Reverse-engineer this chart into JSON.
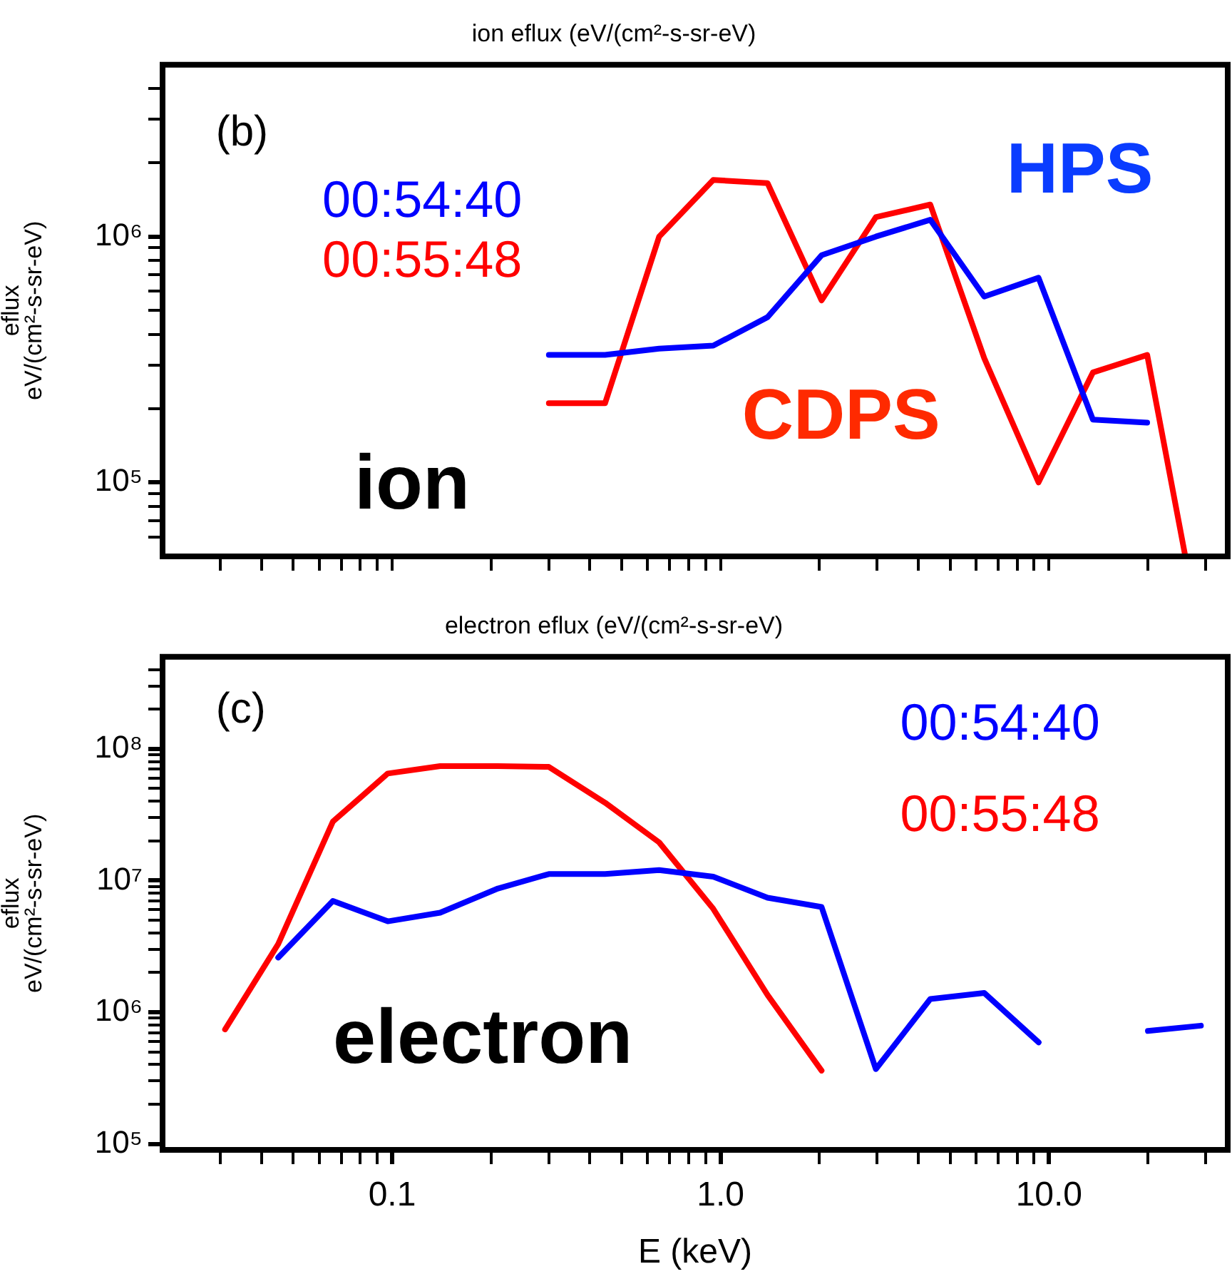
{
  "chart_data": [
    {
      "type": "line",
      "title": "ion eflux (eV/(cm²-s-sr-eV)",
      "ylabel": "eflux\neV/(cm²-s-sr-eV)",
      "x": [
        0.3,
        0.445,
        0.65,
        0.95,
        1.39,
        2.03,
        2.97,
        4.35,
        6.35,
        9.29,
        13.6,
        19.9,
        26
      ],
      "series": [
        {
          "name": "00:54:40",
          "color": "#0000ff",
          "values": [
            330000,
            330000,
            350000,
            360000,
            470000,
            840000,
            1000000,
            1170000,
            570000,
            680000,
            180000,
            175000,
            null
          ]
        },
        {
          "name": "00:55:48",
          "color": "#ff0000",
          "values": [
            210000,
            210000,
            1000000,
            1700000,
            1650000,
            550000,
            1200000,
            1350000,
            320000,
            100000,
            280000,
            330000,
            50000
          ]
        }
      ],
      "xlim": [
        0.02,
        35
      ],
      "ylim": [
        50000,
        5000000
      ],
      "xticks": [
        {
          "value": 0.03,
          "label": null
        },
        {
          "value": 0.04,
          "label": null
        },
        {
          "value": 0.05,
          "label": null
        },
        {
          "value": 0.06,
          "label": null
        },
        {
          "value": 0.07,
          "label": null
        },
        {
          "value": 0.08,
          "label": null
        },
        {
          "value": 0.09,
          "label": null
        },
        {
          "value": 0.1,
          "label": null
        },
        {
          "value": 0.2,
          "label": null
        },
        {
          "value": 0.3,
          "label": null
        },
        {
          "value": 0.4,
          "label": null
        },
        {
          "value": 0.5,
          "label": null
        },
        {
          "value": 0.6,
          "label": null
        },
        {
          "value": 0.7,
          "label": null
        },
        {
          "value": 0.8,
          "label": null
        },
        {
          "value": 0.9,
          "label": null
        },
        {
          "value": 1,
          "label": null
        },
        {
          "value": 2,
          "label": null
        },
        {
          "value": 3,
          "label": null
        },
        {
          "value": 4,
          "label": null
        },
        {
          "value": 5,
          "label": null
        },
        {
          "value": 6,
          "label": null
        },
        {
          "value": 7,
          "label": null
        },
        {
          "value": 8,
          "label": null
        },
        {
          "value": 9,
          "label": null
        },
        {
          "value": 10,
          "label": null
        },
        {
          "value": 20,
          "label": null
        },
        {
          "value": 30,
          "label": null
        }
      ],
      "yticks": [
        {
          "value": 60000,
          "label": null
        },
        {
          "value": 70000,
          "label": null
        },
        {
          "value": 80000,
          "label": null
        },
        {
          "value": 90000,
          "label": null
        },
        {
          "value": 100000,
          "label": "10⁵"
        },
        {
          "value": 200000,
          "label": null
        },
        {
          "value": 300000,
          "label": null
        },
        {
          "value": 400000,
          "label": null
        },
        {
          "value": 500000,
          "label": null
        },
        {
          "value": 600000,
          "label": null
        },
        {
          "value": 700000,
          "label": null
        },
        {
          "value": 800000,
          "label": null
        },
        {
          "value": 900000,
          "label": null
        },
        {
          "value": 1000000,
          "label": "10⁶"
        },
        {
          "value": 2000000,
          "label": null
        },
        {
          "value": 3000000,
          "label": null
        },
        {
          "value": 4000000,
          "label": null
        }
      ],
      "log": "xy",
      "grid": false,
      "legend": "top left",
      "tick_labels": "y",
      "annotations": [
        "(b)",
        "HPS",
        "CDPS",
        "ion"
      ]
    },
    {
      "type": "line",
      "title": "electron eflux (eV/(cm²-s-sr-eV)",
      "xlabel": "E (keV)",
      "ylabel": "eflux\neV/(cm²-s-sr-eV)",
      "x": [
        0.031,
        0.045,
        0.066,
        0.097,
        0.14,
        0.21,
        0.3,
        0.445,
        0.65,
        0.95,
        1.39,
        2.03,
        2.97,
        4.35,
        6.35,
        9.3,
        13.7,
        20,
        29
      ],
      "series": [
        {
          "name": "00:54:40",
          "color": "#0000ff",
          "values": [
            null,
            2600000,
            7000000,
            4900000,
            5700000,
            8700000,
            11200000,
            11200000,
            12000000,
            10700000,
            7400000,
            6300000,
            370000,
            1260000,
            1400000,
            590000,
            null,
            720000,
            790000
          ]
        },
        {
          "name": "00:55:48",
          "color": "#ff0000",
          "values": [
            740000,
            3300000,
            28000000,
            65000000,
            74000000,
            74000000,
            73000000,
            39000000,
            19500000,
            6100000,
            1350000,
            360000,
            null,
            null,
            null,
            null,
            null,
            null,
            null
          ]
        }
      ],
      "xlim": [
        0.02,
        35
      ],
      "ylim": [
        90000,
        500000000
      ],
      "xticks": [
        {
          "value": 0.03,
          "label": null
        },
        {
          "value": 0.04,
          "label": null
        },
        {
          "value": 0.05,
          "label": null
        },
        {
          "value": 0.06,
          "label": null
        },
        {
          "value": 0.07,
          "label": null
        },
        {
          "value": 0.08,
          "label": null
        },
        {
          "value": 0.09,
          "label": null
        },
        0.1,
        {
          "value": 0.2,
          "label": null
        },
        {
          "value": 0.3,
          "label": null
        },
        {
          "value": 0.4,
          "label": null
        },
        {
          "value": 0.5,
          "label": null
        },
        {
          "value": 0.6,
          "label": null
        },
        {
          "value": 0.7,
          "label": null
        },
        {
          "value": 0.8,
          "label": null
        },
        {
          "value": 0.9,
          "label": null
        },
        {
          "value": 1,
          "label": "1.0"
        },
        {
          "value": 2,
          "label": null
        },
        {
          "value": 3,
          "label": null
        },
        {
          "value": 4,
          "label": null
        },
        {
          "value": 5,
          "label": null
        },
        {
          "value": 6,
          "label": null
        },
        {
          "value": 7,
          "label": null
        },
        {
          "value": 8,
          "label": null
        },
        {
          "value": 9,
          "label": null
        },
        {
          "value": 10,
          "label": "10.0"
        },
        {
          "value": 20,
          "label": null
        },
        {
          "value": 30,
          "label": null
        }
      ],
      "yticks": [
        {
          "value": 100000,
          "label": "10⁵"
        },
        {
          "value": 200000,
          "label": null
        },
        {
          "value": 300000,
          "label": null
        },
        {
          "value": 400000,
          "label": null
        },
        {
          "value": 500000,
          "label": null
        },
        {
          "value": 600000,
          "label": null
        },
        {
          "value": 700000,
          "label": null
        },
        {
          "value": 800000,
          "label": null
        },
        {
          "value": 900000,
          "label": null
        },
        {
          "value": 1000000,
          "label": "10⁶"
        },
        {
          "value": 2000000,
          "label": null
        },
        {
          "value": 3000000,
          "label": null
        },
        {
          "value": 4000000,
          "label": null
        },
        {
          "value": 5000000,
          "label": null
        },
        {
          "value": 6000000,
          "label": null
        },
        {
          "value": 7000000,
          "label": null
        },
        {
          "value": 8000000,
          "label": null
        },
        {
          "value": 9000000,
          "label": null
        },
        {
          "value": 10000000,
          "label": "10⁷"
        },
        {
          "value": 20000000,
          "label": null
        },
        {
          "value": 30000000,
          "label": null
        },
        {
          "value": 40000000,
          "label": null
        },
        {
          "value": 50000000,
          "label": null
        },
        {
          "value": 60000000,
          "label": null
        },
        {
          "value": 70000000,
          "label": null
        },
        {
          "value": 80000000,
          "label": null
        },
        {
          "value": 90000000,
          "label": null
        },
        {
          "value": 100000000,
          "label": "10⁸"
        },
        {
          "value": 200000000,
          "label": null
        },
        {
          "value": 300000000,
          "label": null
        },
        {
          "value": 400000000,
          "label": null
        }
      ],
      "log": "xy",
      "grid": false,
      "legend": "top right",
      "annotations": [
        "(c)",
        "electron"
      ]
    }
  ]
}
